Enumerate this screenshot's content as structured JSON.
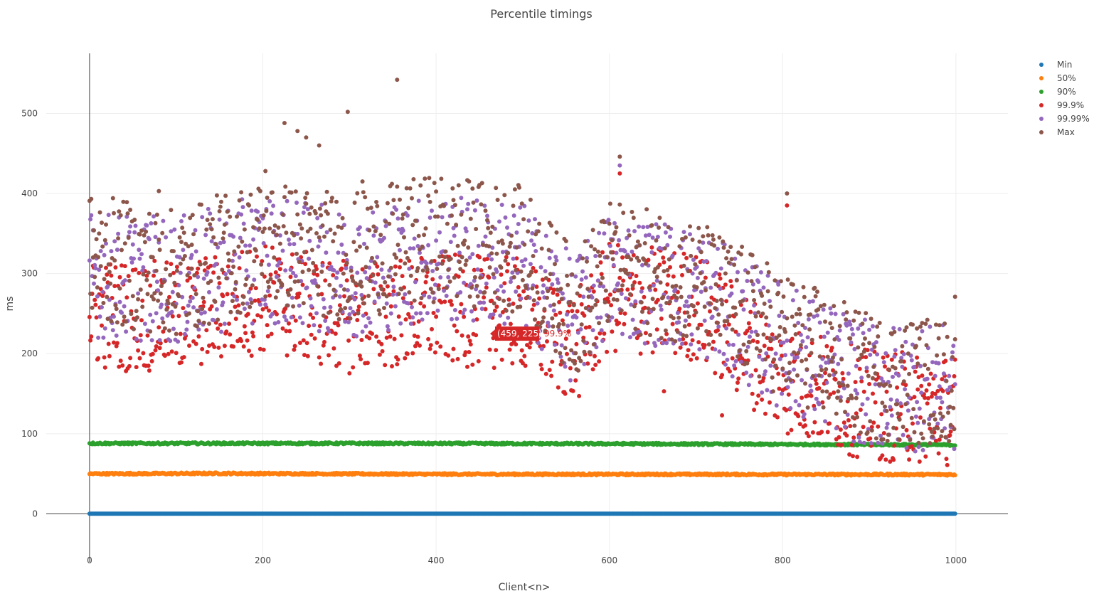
{
  "chart_data": {
    "type": "scatter",
    "title": "Percentile timings",
    "xlabel": "Client<n>",
    "ylabel": "ms",
    "xlim": [
      -50,
      1060
    ],
    "ylim": [
      -60,
      575
    ],
    "x_ticks": [
      0,
      200,
      400,
      600,
      800,
      1000
    ],
    "x_tick_labels": [
      "0",
      "200",
      "400",
      "600",
      "800",
      "1000"
    ],
    "y_ticks": [
      0,
      100,
      200,
      300,
      400,
      500
    ],
    "y_tick_labels": [
      "0",
      "100",
      "200",
      "300",
      "400",
      "500"
    ],
    "grid": true,
    "legend_position": "top-right",
    "series": [
      {
        "name": "Min",
        "color": "#1f77b4",
        "x_range": [
          0,
          999
        ],
        "values_profile": [
          [
            0,
            0.2
          ],
          [
            1000,
            0.2
          ]
        ],
        "spread": [
          0,
          0
        ]
      },
      {
        "name": "50%",
        "color": "#ff7f0e",
        "x_range": [
          0,
          999
        ],
        "values_profile": [
          [
            0,
            50
          ],
          [
            150,
            50.5
          ],
          [
            400,
            49.5
          ],
          [
            1000,
            49
          ]
        ],
        "spread": [
          -1.2,
          1.2
        ]
      },
      {
        "name": "90%",
        "color": "#2ca02c",
        "x_range": [
          0,
          999
        ],
        "values_profile": [
          [
            0,
            88
          ],
          [
            300,
            88
          ],
          [
            600,
            87.5
          ],
          [
            1000,
            86
          ]
        ],
        "spread": [
          -1.2,
          1.2
        ]
      },
      {
        "name": "99.9%",
        "color": "#d62728",
        "x_range": [
          0,
          999
        ],
        "values_profile": [
          [
            0,
            250
          ],
          [
            100,
            245
          ],
          [
            200,
            270
          ],
          [
            300,
            245
          ],
          [
            400,
            255
          ],
          [
            500,
            250
          ],
          [
            560,
            205
          ],
          [
            600,
            270
          ],
          [
            700,
            260
          ],
          [
            800,
            170
          ],
          [
            900,
            135
          ],
          [
            1000,
            130
          ]
        ],
        "spread": [
          -70,
          70
        ]
      },
      {
        "name": "99.99%",
        "color": "#9467bd",
        "x_range": [
          0,
          999
        ],
        "values_profile": [
          [
            0,
            300
          ],
          [
            100,
            290
          ],
          [
            200,
            320
          ],
          [
            300,
            300
          ],
          [
            400,
            320
          ],
          [
            500,
            310
          ],
          [
            560,
            240
          ],
          [
            600,
            300
          ],
          [
            700,
            280
          ],
          [
            800,
            210
          ],
          [
            900,
            160
          ],
          [
            1000,
            155
          ]
        ],
        "spread": [
          -80,
          80
        ]
      },
      {
        "name": "Max",
        "color": "#8c564b",
        "x_range": [
          0,
          999
        ],
        "values_profile": [
          [
            0,
            320
          ],
          [
            100,
            300
          ],
          [
            200,
            340
          ],
          [
            300,
            320
          ],
          [
            400,
            345
          ],
          [
            500,
            330
          ],
          [
            560,
            250
          ],
          [
            600,
            310
          ],
          [
            700,
            290
          ],
          [
            800,
            225
          ],
          [
            900,
            170
          ],
          [
            1000,
            165
          ]
        ],
        "spread": [
          -80,
          80
        ]
      }
    ],
    "outliers": [
      {
        "series": "Max",
        "x": 355,
        "y": 542
      },
      {
        "series": "Max",
        "x": 298,
        "y": 502
      },
      {
        "series": "Max",
        "x": 225,
        "y": 488
      },
      {
        "series": "Max",
        "x": 240,
        "y": 478
      },
      {
        "series": "Max",
        "x": 250,
        "y": 470
      },
      {
        "series": "Max",
        "x": 265,
        "y": 460
      },
      {
        "series": "Max",
        "x": 612,
        "y": 446
      },
      {
        "series": "99.99%",
        "x": 612,
        "y": 435
      },
      {
        "series": "99.9%",
        "x": 612,
        "y": 425
      },
      {
        "series": "Max",
        "x": 203,
        "y": 428
      },
      {
        "series": "Max",
        "x": 315,
        "y": 415
      },
      {
        "series": "Max",
        "x": 80,
        "y": 403
      },
      {
        "series": "Max",
        "x": 805,
        "y": 400
      },
      {
        "series": "99.9%",
        "x": 805,
        "y": 385
      },
      {
        "series": "Max",
        "x": 999,
        "y": 271
      },
      {
        "series": "99.9%",
        "x": 663,
        "y": 153
      },
      {
        "series": "99.9%",
        "x": 730,
        "y": 123
      }
    ],
    "hover": {
      "series": "99.9%",
      "x": 459,
      "y": 225,
      "label": "(459, 225)",
      "name": "99.9%"
    }
  }
}
